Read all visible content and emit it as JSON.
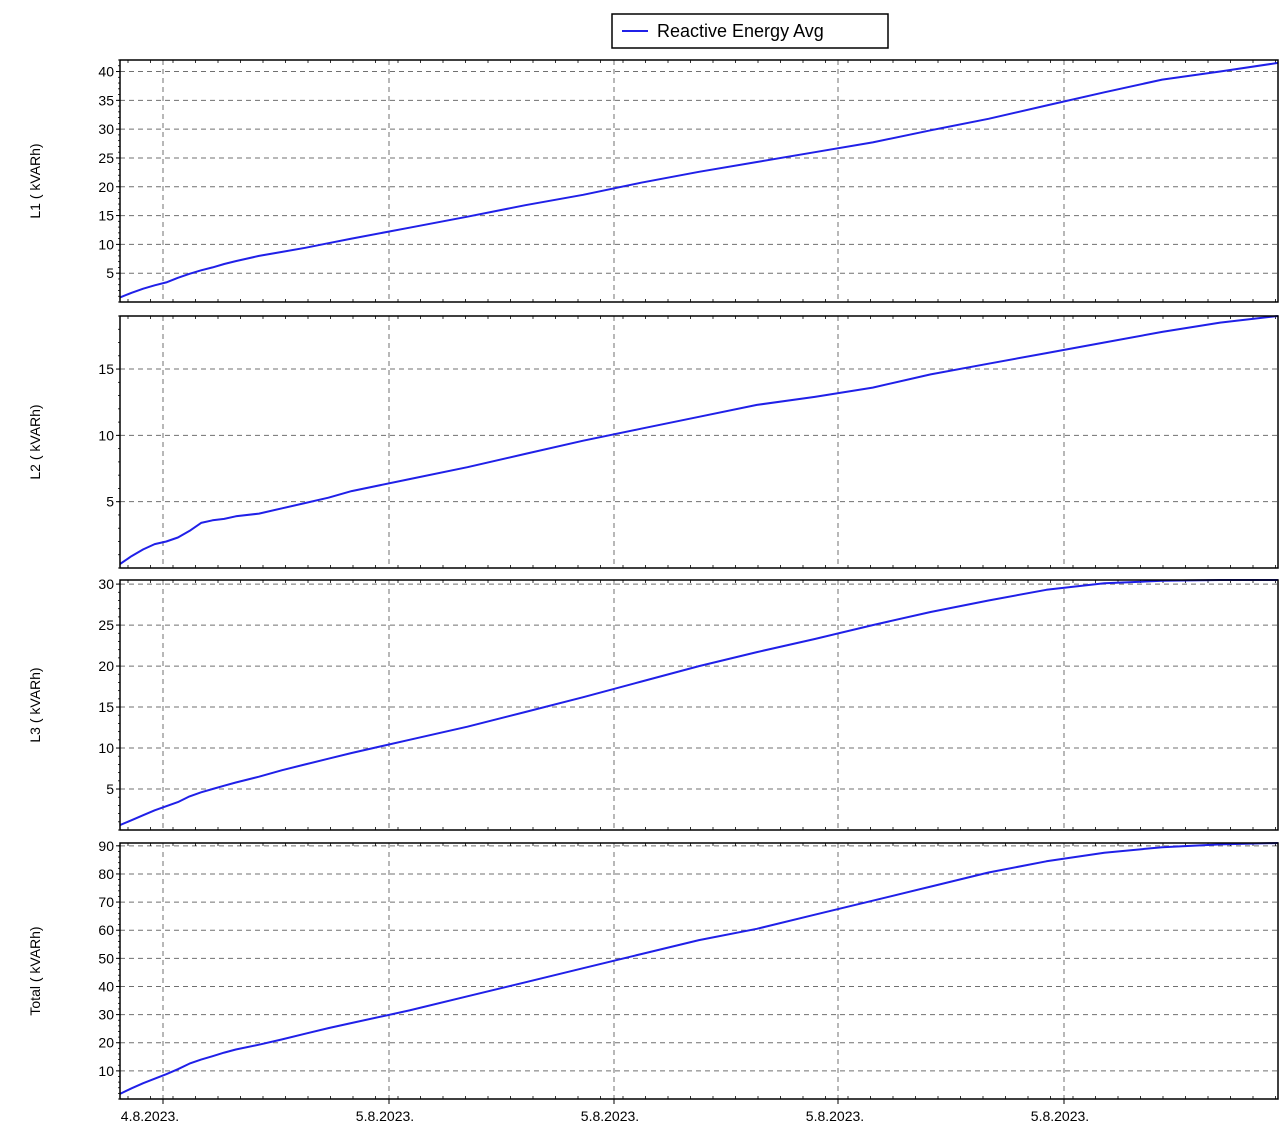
{
  "legend": {
    "label": "Reactive Energy Avg",
    "color": "#2020e8"
  },
  "colors": {
    "series": "#2020e8",
    "grid": "#707070",
    "frame": "#000000",
    "background": "#ffffff"
  },
  "x_tick_labels": [
    "4.8.2023.",
    "5.8.2023.",
    "5.8.2023.",
    "5.8.2023.",
    "5.8.2023."
  ],
  "chart_data": [
    {
      "type": "line",
      "ylabel": "L1 ( kVARh)",
      "ylim": [
        0,
        42
      ],
      "yticks": [
        5,
        10,
        15,
        20,
        25,
        30,
        35,
        40
      ],
      "grid": true,
      "series": [
        {
          "name": "Reactive Energy Avg",
          "x": [
            0,
            0.01,
            0.02,
            0.03,
            0.04,
            0.05,
            0.06,
            0.07,
            0.08,
            0.09,
            0.1,
            0.12,
            0.14,
            0.16,
            0.18,
            0.2,
            0.25,
            0.3,
            0.35,
            0.4,
            0.45,
            0.5,
            0.55,
            0.6,
            0.65,
            0.7,
            0.75,
            0.8,
            0.85,
            0.9,
            0.95,
            1.0
          ],
          "y": [
            0.8,
            1.6,
            2.3,
            2.9,
            3.4,
            4.2,
            4.9,
            5.5,
            6.0,
            6.6,
            7.1,
            8.0,
            8.7,
            9.4,
            10.2,
            11.0,
            12.9,
            14.8,
            16.8,
            18.6,
            20.7,
            22.6,
            24.3,
            26.0,
            27.7,
            29.8,
            31.8,
            34.1,
            36.4,
            38.6,
            40.0,
            41.5
          ]
        }
      ]
    },
    {
      "type": "line",
      "ylabel": "L2 ( kVARh)",
      "ylim": [
        0,
        19
      ],
      "yticks": [
        5,
        10,
        15
      ],
      "grid": true,
      "series": [
        {
          "name": "Reactive Energy Avg",
          "x": [
            0,
            0.01,
            0.02,
            0.03,
            0.04,
            0.05,
            0.06,
            0.07,
            0.08,
            0.09,
            0.1,
            0.12,
            0.14,
            0.16,
            0.18,
            0.2,
            0.25,
            0.3,
            0.35,
            0.4,
            0.45,
            0.5,
            0.55,
            0.6,
            0.65,
            0.7,
            0.75,
            0.8,
            0.85,
            0.9,
            0.95,
            1.0
          ],
          "y": [
            0.3,
            0.9,
            1.4,
            1.8,
            2.0,
            2.3,
            2.8,
            3.4,
            3.6,
            3.7,
            3.9,
            4.1,
            4.5,
            4.9,
            5.3,
            5.8,
            6.7,
            7.6,
            8.6,
            9.6,
            10.5,
            11.4,
            12.3,
            12.9,
            13.6,
            14.6,
            15.4,
            16.2,
            17.0,
            17.8,
            18.5,
            19.0
          ]
        }
      ]
    },
    {
      "type": "line",
      "ylabel": "L3 ( kVARh)",
      "ylim": [
        0,
        30.5
      ],
      "yticks": [
        5,
        10,
        15,
        20,
        25,
        30
      ],
      "grid": true,
      "series": [
        {
          "name": "Reactive Energy Avg",
          "x": [
            0,
            0.01,
            0.02,
            0.03,
            0.04,
            0.05,
            0.06,
            0.07,
            0.08,
            0.09,
            0.1,
            0.12,
            0.14,
            0.16,
            0.18,
            0.2,
            0.25,
            0.3,
            0.35,
            0.4,
            0.45,
            0.5,
            0.55,
            0.6,
            0.65,
            0.7,
            0.75,
            0.8,
            0.85,
            0.9,
            0.95,
            1.0
          ],
          "y": [
            0.6,
            1.2,
            1.8,
            2.4,
            2.9,
            3.4,
            4.1,
            4.6,
            5.0,
            5.4,
            5.8,
            6.5,
            7.3,
            8.0,
            8.7,
            9.4,
            11.0,
            12.6,
            14.4,
            16.2,
            18.1,
            20.0,
            21.7,
            23.3,
            25.0,
            26.6,
            28.0,
            29.3,
            30.1,
            30.4,
            30.5,
            30.5
          ]
        }
      ]
    },
    {
      "type": "line",
      "ylabel": "Total ( kVARh)",
      "ylim": [
        0,
        91
      ],
      "yticks": [
        10,
        20,
        30,
        40,
        50,
        60,
        70,
        80,
        90
      ],
      "grid": true,
      "series": [
        {
          "name": "Reactive Energy Avg",
          "x": [
            0,
            0.01,
            0.02,
            0.03,
            0.04,
            0.05,
            0.06,
            0.07,
            0.08,
            0.09,
            0.1,
            0.12,
            0.14,
            0.16,
            0.18,
            0.2,
            0.25,
            0.3,
            0.35,
            0.4,
            0.45,
            0.5,
            0.55,
            0.6,
            0.65,
            0.7,
            0.75,
            0.8,
            0.85,
            0.9,
            0.95,
            1.0
          ],
          "y": [
            1.8,
            3.8,
            5.6,
            7.2,
            8.8,
            10.6,
            12.6,
            14.0,
            15.2,
            16.5,
            17.6,
            19.3,
            21.2,
            23.2,
            25.2,
            27.0,
            31.5,
            36.5,
            41.5,
            46.5,
            51.5,
            56.5,
            60.5,
            65.5,
            70.5,
            75.5,
            80.5,
            84.5,
            87.5,
            89.5,
            90.5,
            91.0
          ]
        }
      ]
    }
  ]
}
